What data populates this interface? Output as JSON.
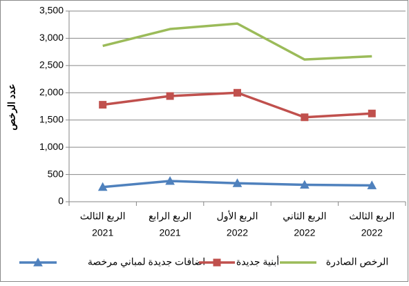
{
  "chart_data": {
    "type": "line",
    "y_label": "عدد الرخص",
    "categories": [
      [
        "الربع الثالث",
        "2021"
      ],
      [
        "الربع الرابع",
        "2021"
      ],
      [
        "الربع الأول",
        "2022"
      ],
      [
        "الربع الثاني",
        "2022"
      ],
      [
        "الربع الثالث",
        "2022"
      ]
    ],
    "series": [
      {
        "name": "اضافات جديدة لمباني مرخصة",
        "color": "#4F81BD",
        "marker": "triangle",
        "values": [
          270,
          380,
          340,
          310,
          300
        ]
      },
      {
        "name": "أبنية جديدة",
        "color": "#C0504D",
        "marker": "square",
        "values": [
          1780,
          1940,
          2000,
          1550,
          1620
        ]
      },
      {
        "name": "الرخص الصادرة",
        "color": "#9BBB59",
        "marker": "none",
        "values": [
          2860,
          3170,
          3270,
          2610,
          2670
        ]
      }
    ],
    "ylim": [
      0,
      3500
    ],
    "yticks": [
      0,
      500,
      {
        "value": 1000,
        "label": "1,000"
      },
      {
        "value": 1500,
        "label": "1,500"
      },
      {
        "value": 2000,
        "label": "2,000"
      },
      {
        "value": 2500,
        "label": "2,500"
      },
      {
        "value": 3000,
        "label": "3,000"
      },
      {
        "value": 3500,
        "label": "3,500"
      }
    ],
    "grid": true,
    "legend": "bottom"
  }
}
